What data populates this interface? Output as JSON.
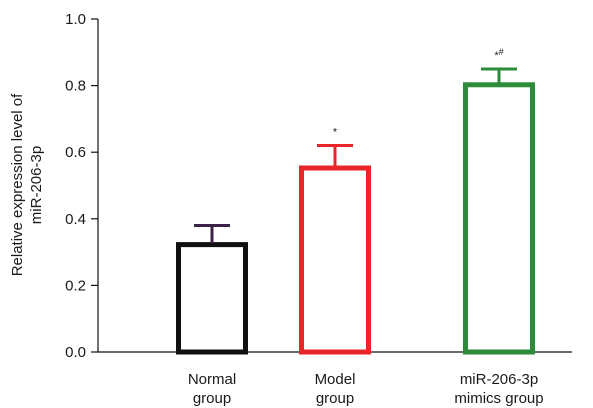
{
  "chart_data": {
    "type": "bar",
    "categories": [
      [
        "Normal",
        "group"
      ],
      [
        "Model",
        "group"
      ],
      [
        "miR-206-3p",
        "mimics group"
      ]
    ],
    "values": [
      0.33,
      0.56,
      0.81
    ],
    "errors": [
      0.05,
      0.06,
      0.04
    ],
    "bar_colors": [
      "#111111",
      "#e8262a",
      "#2e8b3a"
    ],
    "error_colors": [
      "#3d2248",
      "#e8262a",
      "#2e8b3a"
    ],
    "annotations": [
      "",
      "*",
      "*#"
    ],
    "ylabel_lines": [
      "Relative expression level of",
      "miR-206-3p"
    ],
    "ylim": [
      0,
      1.0
    ],
    "yticks": [
      "0.0",
      "0.2",
      "0.4",
      "0.6",
      "0.8",
      "1.0"
    ]
  }
}
